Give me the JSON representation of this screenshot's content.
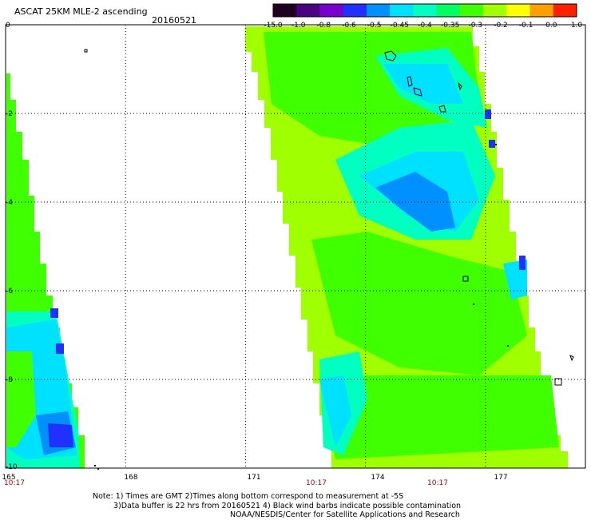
{
  "title": "ASCAT 25KM MLE-2 ascending",
  "date": "20160521",
  "colorbar": {
    "labels": [
      "-15.0",
      "-1.0",
      "-0.8",
      "-0.6",
      "-0.5",
      "-0.45",
      "-0.4",
      "-0.35",
      "-0.3",
      "-0.2",
      "-0.1",
      "0.0",
      "1.0"
    ],
    "colors": [
      "#200020",
      "#4a0080",
      "#7a00d0",
      "#2030ff",
      "#0090ff",
      "#00e0ff",
      "#00ffc0",
      "#00ff60",
      "#40ff00",
      "#a0ff00",
      "#ffff00",
      "#ffa000",
      "#ff2000"
    ]
  },
  "map": {
    "y_ticks": [
      "0",
      "-2",
      "-4",
      "-6",
      "-8",
      "-10"
    ],
    "x_ticks": [
      "165",
      "168",
      "171",
      "174",
      "177"
    ],
    "time_labels": [
      "10:17",
      "10:17",
      "10:17"
    ],
    "lat_range": [
      -10,
      0
    ],
    "lon_range": [
      165,
      179.5
    ],
    "swaths": [
      {
        "name": "left-swath",
        "color": "#40ff00"
      },
      {
        "name": "right-swath",
        "color": "#40ff00"
      }
    ]
  },
  "notes": {
    "line1": "Note: 1) Times are GMT 2)Times along bottom correspond to measurement at -5S",
    "line2": "3)Data buffer is 22 hrs from 20160521 4) Black wind barbs indicate possible contamination",
    "line3": "NOAA/NESDIS/Center for Satellite Applications and Research"
  }
}
